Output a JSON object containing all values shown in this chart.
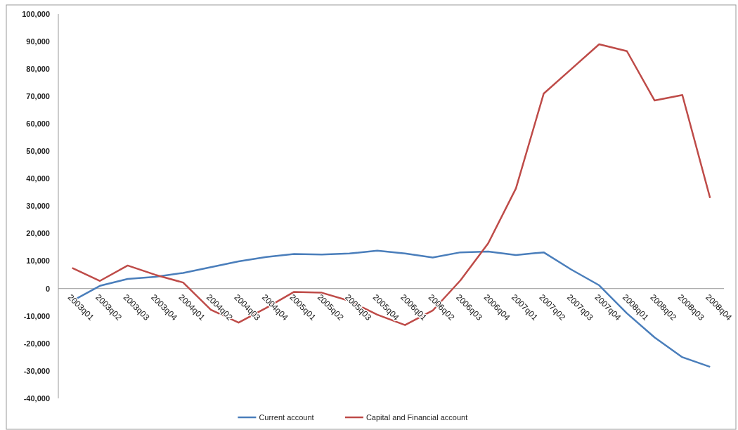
{
  "chart_data": {
    "type": "line",
    "categories": [
      "2003q01",
      "2003q02",
      "2003q03",
      "2003q04",
      "2004q01",
      "2004q02",
      "2004q03",
      "2004q04",
      "2005q01",
      "2005q02",
      "2005q03",
      "2005q04",
      "2006q01",
      "2006q02",
      "2006q03",
      "2006q04",
      "2007q01",
      "2007q02",
      "2007q03",
      "2007q04",
      "2008q01",
      "2008q02",
      "2008q03",
      "2008q04"
    ],
    "series": [
      {
        "name": "Current account",
        "color": "#4a7ebb",
        "values": [
          -4500,
          1000,
          3500,
          4300,
          5700,
          7800,
          9900,
          11500,
          12600,
          12400,
          12800,
          13800,
          12800,
          11300,
          13200,
          13500,
          12200,
          13200,
          6900,
          1200,
          -9000,
          -17800,
          -25000,
          -28500
        ]
      },
      {
        "name": "Capital and Financial account",
        "color": "#be4b48",
        "values": [
          7500,
          2800,
          8400,
          5000,
          2200,
          -7700,
          -12400,
          -7000,
          -1200,
          -1500,
          -4500,
          -9500,
          -13300,
          -8000,
          3000,
          16500,
          36500,
          71000,
          80000,
          89000,
          86500,
          68500,
          70500,
          33000
        ]
      }
    ],
    "ylim": [
      -40000,
      100000
    ],
    "yticks": [
      {
        "value": -40000,
        "label": "-40,000"
      },
      {
        "value": -30000,
        "label": "-30,000"
      },
      {
        "value": -20000,
        "label": "-20,000"
      },
      {
        "value": -10000,
        "label": "-10,000"
      },
      0,
      {
        "value": 10000,
        "label": "10,000"
      },
      {
        "value": 20000,
        "label": "20,000"
      },
      {
        "value": 30000,
        "label": "30,000"
      },
      {
        "value": 40000,
        "label": "40,000"
      },
      {
        "value": 50000,
        "label": "50,000"
      },
      {
        "value": 60000,
        "label": "60,000"
      },
      {
        "value": 70000,
        "label": "70,000"
      },
      {
        "value": 80000,
        "label": "80,000"
      },
      {
        "value": 90000,
        "label": "90,000"
      },
      {
        "value": 100000,
        "label": "100,000"
      }
    ],
    "grid": false,
    "legend": "bottom",
    "marker": "none",
    "line_style": "solid"
  }
}
